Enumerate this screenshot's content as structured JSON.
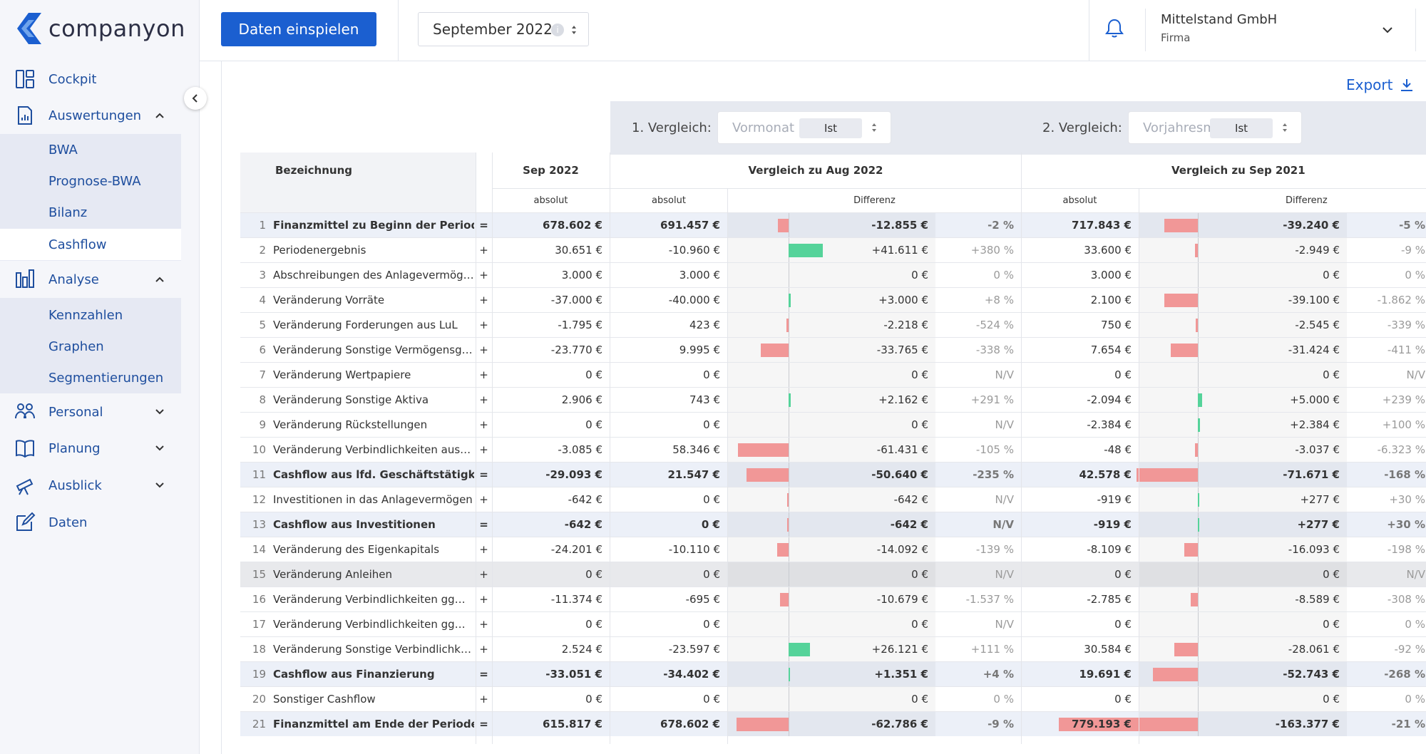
{
  "app": {
    "logo_text": "companyon",
    "brand_color": "#1b5fd0"
  },
  "sidebar": {
    "items": [
      {
        "label": "Cockpit",
        "icon": "dashboard-icon"
      },
      {
        "label": "Auswertungen",
        "icon": "report-icon",
        "expanded": true
      },
      {
        "label": "Analyse",
        "icon": "bar-chart-icon",
        "expanded": true
      },
      {
        "label": "Personal",
        "icon": "people-icon",
        "expanded": false
      },
      {
        "label": "Planung",
        "icon": "book-icon",
        "expanded": false
      },
      {
        "label": "Ausblick",
        "icon": "telescope-icon",
        "expanded": false
      },
      {
        "label": "Daten",
        "icon": "edit-icon"
      }
    ],
    "auswertungen_sub": [
      "BWA",
      "Prognose-BWA",
      "Bilanz",
      "Cashflow"
    ],
    "analyse_sub": [
      "Kennzahlen",
      "Graphen",
      "Segmentierungen"
    ],
    "active": "Cashflow"
  },
  "header": {
    "import_button": "Daten einspielen",
    "period": "September 2022",
    "company_name": "Mittelstand GmbH",
    "company_type": "Firma"
  },
  "main": {
    "export_label": "Export",
    "comparison1": {
      "label": "1. Vergleich:",
      "placeholder": "Vormonat",
      "value": "Ist"
    },
    "comparison2": {
      "label": "2. Vergleich:",
      "placeholder": "Vorjahresmonat",
      "value": "Ist"
    },
    "headers": {
      "bezeichnung": "Bezeichnung",
      "current": "Sep 2022",
      "group1": "Vergleich zu Aug 2022",
      "group2": "Vergleich zu Sep 2021",
      "absolut": "absolut",
      "differenz": "Differenz"
    }
  },
  "table": {
    "rows": [
      {
        "idx": "1",
        "name": "Finanzmittel zu Beginn der Periode",
        "op": "=",
        "cur": "678.602 €",
        "a1": "691.457 €",
        "d1": "-12.855 €",
        "d1v": -12855,
        "p1": "-2 %",
        "a2": "717.843 €",
        "d2": "-39.240 €",
        "d2v": -39240,
        "p2": "-5 %",
        "type": "sum"
      },
      {
        "idx": "2",
        "name": "Periodenergebnis",
        "op": "+",
        "cur": "30.651 €",
        "a1": "-10.960 €",
        "d1": "+41.611 €",
        "d1v": 41611,
        "p1": "+380 %",
        "a2": "33.600 €",
        "d2": "-2.949 €",
        "d2v": -2949,
        "p2": "-9 %",
        "type": "normal"
      },
      {
        "idx": "3",
        "name": "Abschreibungen des Anlagevermög…",
        "op": "+",
        "cur": "3.000 €",
        "a1": "3.000 €",
        "d1": "0 €",
        "d1v": 0,
        "p1": "0 %",
        "a2": "3.000 €",
        "d2": "0 €",
        "d2v": 0,
        "p2": "0 %",
        "type": "normal"
      },
      {
        "idx": "4",
        "name": "Veränderung Vorräte",
        "op": "+",
        "cur": "-37.000 €",
        "a1": "-40.000 €",
        "d1": "+3.000 €",
        "d1v": 3000,
        "p1": "+8 %",
        "a2": "2.100 €",
        "d2": "-39.100 €",
        "d2v": -39100,
        "p2": "-1.862 %",
        "type": "normal"
      },
      {
        "idx": "5",
        "name": "Veränderung Forderungen aus LuL",
        "op": "+",
        "cur": "-1.795 €",
        "a1": "423 €",
        "d1": "-2.218 €",
        "d1v": -2218,
        "p1": "-524 %",
        "a2": "750 €",
        "d2": "-2.545 €",
        "d2v": -2545,
        "p2": "-339 %",
        "type": "normal"
      },
      {
        "idx": "6",
        "name": "Veränderung Sonstige Vermögensg…",
        "op": "+",
        "cur": "-23.770 €",
        "a1": "9.995 €",
        "d1": "-33.765 €",
        "d1v": -33765,
        "p1": "-338 %",
        "a2": "7.654 €",
        "d2": "-31.424 €",
        "d2v": -31424,
        "p2": "-411 %",
        "type": "normal"
      },
      {
        "idx": "7",
        "name": "Veränderung Wertpapiere",
        "op": "+",
        "cur": "0 €",
        "a1": "0 €",
        "d1": "0 €",
        "d1v": 0,
        "p1": "N/V",
        "a2": "0 €",
        "d2": "0 €",
        "d2v": 0,
        "p2": "N/V",
        "type": "normal"
      },
      {
        "idx": "8",
        "name": "Veränderung Sonstige Aktiva",
        "op": "+",
        "cur": "2.906 €",
        "a1": "743 €",
        "d1": "+2.162 €",
        "d1v": 2162,
        "p1": "+291 %",
        "a2": "-2.094 €",
        "d2": "+5.000 €",
        "d2v": 5000,
        "p2": "+239 %",
        "type": "normal"
      },
      {
        "idx": "9",
        "name": "Veränderung Rückstellungen",
        "op": "+",
        "cur": "0 €",
        "a1": "0 €",
        "d1": "0 €",
        "d1v": 0,
        "p1": "N/V",
        "a2": "-2.384 €",
        "d2": "+2.384 €",
        "d2v": 2384,
        "p2": "+100 %",
        "type": "normal"
      },
      {
        "idx": "10",
        "name": "Veränderung Verbindlichkeiten aus…",
        "op": "+",
        "cur": "-3.085 €",
        "a1": "58.346 €",
        "d1": "-61.431 €",
        "d1v": -61431,
        "p1": "-105 %",
        "a2": "-48 €",
        "d2": "-3.037 €",
        "d2v": -3037,
        "p2": "-6.323 %",
        "type": "normal"
      },
      {
        "idx": "11",
        "name": "Cashflow aus lfd. Geschäftstätigk…",
        "op": "=",
        "cur": "-29.093 €",
        "a1": "21.547 €",
        "d1": "-50.640 €",
        "d1v": -50640,
        "p1": "-235 %",
        "a2": "42.578 €",
        "d2": "-71.671 €",
        "d2v": -71671,
        "p2": "-168 %",
        "type": "sum"
      },
      {
        "idx": "12",
        "name": "Investitionen in das Anlagevermögen",
        "op": "+",
        "cur": "-642 €",
        "a1": "0 €",
        "d1": "-642 €",
        "d1v": -642,
        "p1": "N/V",
        "a2": "-919 €",
        "d2": "+277 €",
        "d2v": 277,
        "p2": "+30 %",
        "type": "normal"
      },
      {
        "idx": "13",
        "name": "Cashflow aus Investitionen",
        "op": "=",
        "cur": "-642 €",
        "a1": "0 €",
        "d1": "-642 €",
        "d1v": -642,
        "p1": "N/V",
        "a2": "-919 €",
        "d2": "+277 €",
        "d2v": 277,
        "p2": "+30 %",
        "type": "sum"
      },
      {
        "idx": "14",
        "name": "Veränderung des Eigenkapitals",
        "op": "+",
        "cur": "-24.201 €",
        "a1": "-10.110 €",
        "d1": "-14.092 €",
        "d1v": -14092,
        "p1": "-139 %",
        "a2": "-8.109 €",
        "d2": "-16.093 €",
        "d2v": -16093,
        "p2": "-198 %",
        "type": "normal"
      },
      {
        "idx": "15",
        "name": "Veränderung Anleihen",
        "op": "+",
        "cur": "0 €",
        "a1": "0 €",
        "d1": "0 €",
        "d1v": 0,
        "p1": "N/V",
        "a2": "0 €",
        "d2": "0 €",
        "d2v": 0,
        "p2": "N/V",
        "type": "grey"
      },
      {
        "idx": "16",
        "name": "Veränderung Verbindlichkeiten gg…",
        "op": "+",
        "cur": "-11.374 €",
        "a1": "-695 €",
        "d1": "-10.679 €",
        "d1v": -10679,
        "p1": "-1.537 %",
        "a2": "-2.785 €",
        "d2": "-8.589 €",
        "d2v": -8589,
        "p2": "-308 %",
        "type": "normal"
      },
      {
        "idx": "17",
        "name": "Veränderung Verbindlichkeiten gg…",
        "op": "+",
        "cur": "0 €",
        "a1": "0 €",
        "d1": "0 €",
        "d1v": 0,
        "p1": "N/V",
        "a2": "0 €",
        "d2": "0 €",
        "d2v": 0,
        "p2": "0 %",
        "type": "normal"
      },
      {
        "idx": "18",
        "name": "Veränderung Sonstige Verbindlichk…",
        "op": "+",
        "cur": "2.524 €",
        "a1": "-23.597 €",
        "d1": "+26.121 €",
        "d1v": 26121,
        "p1": "+111 %",
        "a2": "30.584 €",
        "d2": "-28.061 €",
        "d2v": -28061,
        "p2": "-92 %",
        "type": "normal"
      },
      {
        "idx": "19",
        "name": "Cashflow aus Finanzierung",
        "op": "=",
        "cur": "-33.051 €",
        "a1": "-34.402 €",
        "d1": "+1.351 €",
        "d1v": 1351,
        "p1": "+4 %",
        "a2": "19.691 €",
        "d2": "-52.743 €",
        "d2v": -52743,
        "p2": "-268 %",
        "type": "sum"
      },
      {
        "idx": "20",
        "name": "Sonstiger Cashflow",
        "op": "+",
        "cur": "0 €",
        "a1": "0 €",
        "d1": "0 €",
        "d1v": 0,
        "p1": "0 %",
        "a2": "0 €",
        "d2": "0 €",
        "d2v": 0,
        "p2": "0 %",
        "type": "normal"
      },
      {
        "idx": "21",
        "name": "Finanzmittel am Ende der Periode",
        "op": "=",
        "cur": "615.817 €",
        "a1": "678.602 €",
        "d1": "-62.786 €",
        "d1v": -62786,
        "p1": "-9 %",
        "a2": "779.193 €",
        "d2": "-163.377 €",
        "d2v": -163377,
        "p2": "-21 %",
        "type": "sum"
      }
    ],
    "colors": {
      "positive": "#55d39a",
      "negative": "#f19797"
    }
  }
}
